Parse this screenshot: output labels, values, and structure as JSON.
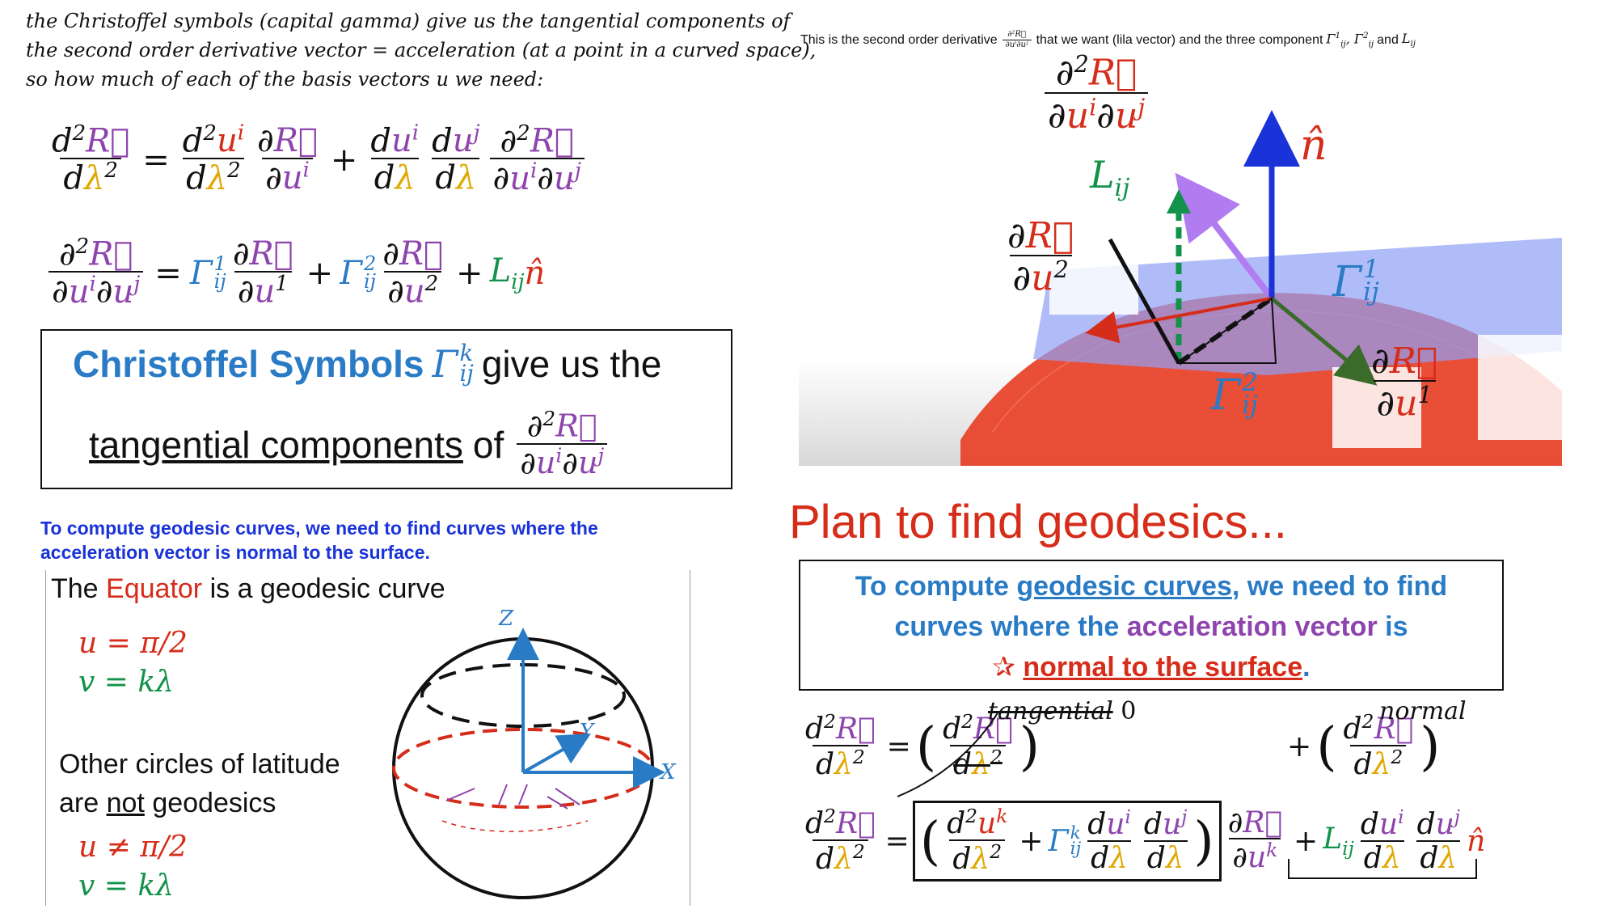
{
  "intro": {
    "line1": "the Christoffel symbols (capital gamma) give us the tangential components of",
    "line2": "the second order derivative vector = acceleration (at a point in a curved space),",
    "line3": "so how much of each of the basis vectors",
    "line3_var": "u",
    "line3_end": "we need:"
  },
  "box1": {
    "title_blue": "Christoffel Symbols",
    "title_rest": "give us the",
    "line2_underlined": "tangential components",
    "line2_of": "of"
  },
  "figure_top": {
    "caption_start": "This is the second order derivative",
    "caption_mid": "that we want (lila vector) and the three component",
    "caption_and": "and"
  },
  "geo_note": {
    "line1": "To compute geodesic curves, we need to find curves where the",
    "line2": "acceleration vector is normal to the surface."
  },
  "sphere_panel": {
    "equator_pre": "The",
    "equator_word": "Equator",
    "equator_post": "is a geodesic curve",
    "eq1": "u = π/2",
    "eq2": "v = kλ",
    "other_line1": "Other circles of latitude",
    "other_line2_pre": "are",
    "other_line2_not": "not",
    "other_line2_post": "geodesics",
    "eq3": "u ≠ π/2",
    "eq4": "v = kλ",
    "axis_z": "Z",
    "axis_y": "Y",
    "axis_x": "X"
  },
  "plan": {
    "title": "Plan to find geodesics...",
    "box_line1_pre": "To compute",
    "box_line1_link": "geodesic curves",
    "box_line1_post": ", we need to find",
    "box_line2_pre": "curves where the",
    "box_line2_purple": "acceleration vector",
    "box_line2_post": "is",
    "box_line3_red": "normal to the surface",
    "box_line3_dot": ".",
    "label_tangential": "tangential",
    "label_zero": "0",
    "label_normal": "normal"
  },
  "colors": {
    "purple": "#8e44ad",
    "red": "#d62c1a",
    "green": "#12924a",
    "blue": "#2a7bc6",
    "yellow": "#e0a800",
    "note_blue": "#1a33d8",
    "plane": "#8fa0f5",
    "surface": "#e8452c"
  }
}
